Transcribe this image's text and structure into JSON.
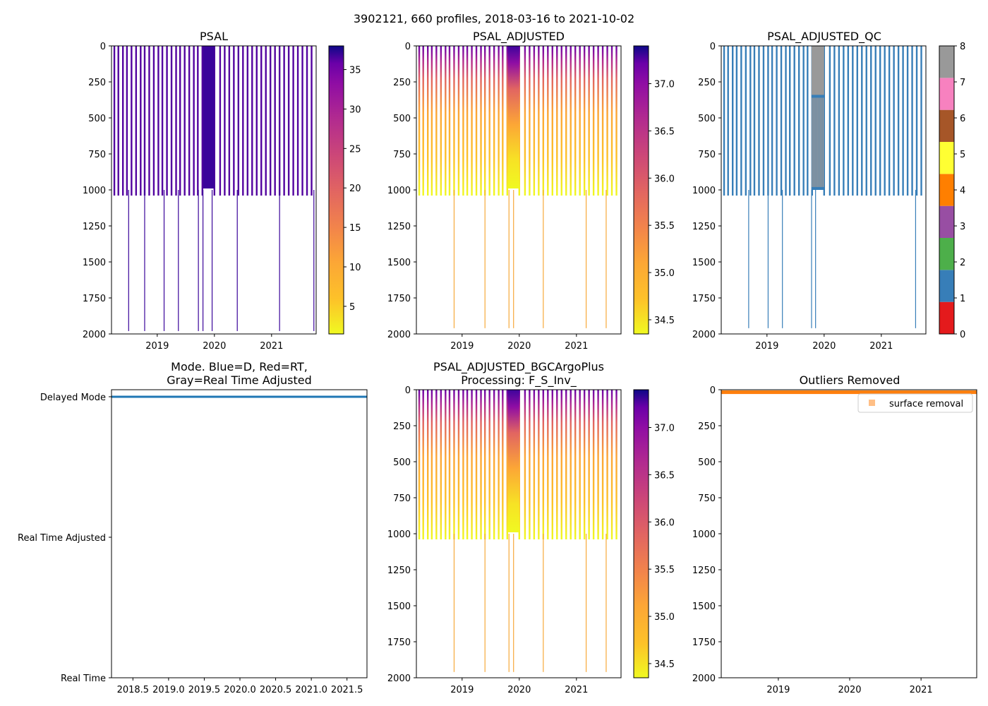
{
  "figure": {
    "suptitle": "3902121, 660 profiles, 2018-03-16 to 2021-10-02"
  },
  "chart_data": [
    {
      "id": "psal",
      "type": "heatmap",
      "title": "PSAL",
      "xlim": [
        2018.2,
        2021.78
      ],
      "ylim": [
        2000,
        0
      ],
      "xticks": [
        2019,
        2020,
        2021
      ],
      "xtick_labels": [
        "2019",
        "2020",
        "2021"
      ],
      "yticks": [
        0,
        250,
        500,
        750,
        1000,
        1250,
        1500,
        1750,
        2000
      ],
      "ytick_labels": [
        "0",
        "250",
        "500",
        "750",
        "1000",
        "1250",
        "1500",
        "1750",
        "2000"
      ],
      "profile_times": [
        2018.25,
        2018.32,
        2018.4,
        2018.47,
        2018.55,
        2018.63,
        2018.71,
        2018.78,
        2018.86,
        2018.94,
        2019.02,
        2019.09,
        2019.17,
        2019.25,
        2019.33,
        2019.4,
        2019.48,
        2019.56,
        2019.64,
        2019.71,
        2019.79,
        2020.0,
        2020.1,
        2020.18,
        2020.26,
        2020.34,
        2020.42,
        2020.5,
        2020.58,
        2020.66,
        2020.74,
        2020.82,
        2020.9,
        2020.98,
        2021.06,
        2021.14,
        2021.22,
        2021.3,
        2021.38,
        2021.46,
        2021.54,
        2021.62,
        2021.7
      ],
      "dense_period": [
        2019.8,
        2020.0
      ],
      "profile_max_depth": 1000,
      "deep_profile_times": [
        2018.5,
        2018.78,
        2019.12,
        2019.37,
        2019.72,
        2019.8,
        2019.96,
        2020.4,
        2021.14,
        2021.74
      ],
      "deep_profile_depth": 1980,
      "colorbar": {
        "cmap": "plasma_r",
        "vmin": 1.5,
        "vmax": 38,
        "ticks": [
          5,
          10,
          15,
          20,
          25,
          30,
          35
        ],
        "tick_labels": [
          "5",
          "10",
          "15",
          "20",
          "25",
          "30",
          "35"
        ]
      },
      "value_profile": {
        "surface": 35,
        "deep": 35,
        "dense": 36.5
      }
    },
    {
      "id": "psal_adjusted",
      "type": "heatmap",
      "title": "PSAL_ADJUSTED",
      "xlim": [
        2018.2,
        2021.78
      ],
      "ylim": [
        2000,
        0
      ],
      "xticks": [
        2019,
        2020,
        2021
      ],
      "xtick_labels": [
        "2019",
        "2020",
        "2021"
      ],
      "yticks": [
        0,
        250,
        500,
        750,
        1000,
        1250,
        1500,
        1750,
        2000
      ],
      "ytick_labels": [
        "0",
        "250",
        "500",
        "750",
        "1000",
        "1250",
        "1500",
        "1750",
        "2000"
      ],
      "profile_times": [
        2018.25,
        2018.32,
        2018.4,
        2018.47,
        2018.55,
        2018.63,
        2018.71,
        2018.78,
        2018.86,
        2018.94,
        2019.02,
        2019.09,
        2019.17,
        2019.25,
        2019.33,
        2019.4,
        2019.48,
        2019.56,
        2019.64,
        2019.71,
        2019.79,
        2020.0,
        2020.1,
        2020.18,
        2020.26,
        2020.34,
        2020.42,
        2020.5,
        2020.58,
        2020.66,
        2020.74,
        2020.82,
        2020.9,
        2020.98,
        2021.06,
        2021.14,
        2021.22,
        2021.3,
        2021.38,
        2021.46,
        2021.54,
        2021.62,
        2021.7
      ],
      "dense_period": [
        2019.8,
        2020.0
      ],
      "profile_max_depth": 1000,
      "deep_profile_times": [
        2018.86,
        2019.4,
        2019.82,
        2019.9,
        2020.42,
        2021.17,
        2021.52
      ],
      "deep_profile_depth": 1960,
      "colorbar": {
        "cmap": "plasma_r",
        "vmin": 34.35,
        "vmax": 37.4,
        "ticks": [
          34.5,
          35.0,
          35.5,
          36.0,
          36.5,
          37.0
        ],
        "tick_labels": [
          "34.5",
          "35.0",
          "35.5",
          "36.0",
          "36.5",
          "37.0"
        ]
      },
      "value_profile": {
        "surface": 36.9,
        "deep": 34.6,
        "dense": 36.95
      }
    },
    {
      "id": "psal_adjusted_qc",
      "type": "heatmap",
      "title": "PSAL_ADJUSTED_QC",
      "xlim": [
        2018.2,
        2021.78
      ],
      "ylim": [
        2000,
        0
      ],
      "xticks": [
        2019,
        2020,
        2021
      ],
      "xtick_labels": [
        "2019",
        "2020",
        "2021"
      ],
      "yticks": [
        0,
        250,
        500,
        750,
        1000,
        1250,
        1500,
        1750,
        2000
      ],
      "ytick_labels": [
        "0",
        "250",
        "500",
        "750",
        "1000",
        "1250",
        "1500",
        "1750",
        "2000"
      ],
      "profile_times": [
        2018.25,
        2018.32,
        2018.4,
        2018.47,
        2018.55,
        2018.63,
        2018.71,
        2018.78,
        2018.86,
        2018.94,
        2019.02,
        2019.09,
        2019.17,
        2019.25,
        2019.33,
        2019.4,
        2019.48,
        2019.56,
        2019.64,
        2019.71,
        2019.79,
        2020.0,
        2020.1,
        2020.18,
        2020.26,
        2020.34,
        2020.42,
        2020.5,
        2020.58,
        2020.66,
        2020.74,
        2020.82,
        2020.9,
        2020.98,
        2021.06,
        2021.14,
        2021.22,
        2021.3,
        2021.38,
        2021.46,
        2021.54,
        2021.62,
        2021.7
      ],
      "dense_period": [
        2019.78,
        2020.0
      ],
      "profile_max_depth": 1000,
      "deep_profile_times": [
        2018.68,
        2019.02,
        2019.27,
        2019.78,
        2019.85,
        2021.6
      ],
      "deep_profile_depth": 1960,
      "colorbar": {
        "cmap": "qc_categorical",
        "vmin": 0,
        "vmax": 8,
        "ticks": [
          0,
          1,
          2,
          3,
          4,
          5,
          6,
          7,
          8
        ],
        "tick_labels": [
          "0",
          "1",
          "2",
          "3",
          "4",
          "5",
          "6",
          "7",
          "8"
        ],
        "colors": [
          "#e41a1c",
          "#377eb8",
          "#4daf4a",
          "#984ea3",
          "#ff7f00",
          "#ffff33",
          "#a65628",
          "#f781bf",
          "#999999"
        ]
      },
      "flag_colors": {
        "good": "#377eb8",
        "missing": "#999999"
      }
    },
    {
      "id": "mode",
      "type": "line",
      "title_lines": [
        "Mode. Blue=D, Red=RT,",
        "Gray=Real Time Adjusted"
      ],
      "xlim": [
        2018.2,
        2021.78
      ],
      "xticks": [
        2018.5,
        2019.0,
        2019.5,
        2020.0,
        2020.5,
        2021.0,
        2021.5
      ],
      "xtick_labels": [
        "2018.5",
        "2019.0",
        "2019.5",
        "2020.0",
        "2020.5",
        "2021.0",
        "2021.5"
      ],
      "ylim": [
        0,
        2.05
      ],
      "yticks": [
        0,
        1,
        2
      ],
      "ytick_labels": [
        "Real Time",
        "Real Time Adjusted",
        "Delayed Mode"
      ],
      "series": [
        {
          "name": "Delayed Mode",
          "color": "#1f77b4",
          "x": [
            2018.2,
            2021.78
          ],
          "y": [
            2,
            2
          ]
        }
      ]
    },
    {
      "id": "psal_adjusted_bgcargoplus",
      "type": "heatmap",
      "title_lines": [
        "PSAL_ADJUSTED_BGCArgoPlus",
        "Processing: F_S_Inv_"
      ],
      "xlim": [
        2018.2,
        2021.78
      ],
      "ylim": [
        2000,
        0
      ],
      "xticks": [
        2019,
        2020,
        2021
      ],
      "xtick_labels": [
        "2019",
        "2020",
        "2021"
      ],
      "yticks": [
        0,
        250,
        500,
        750,
        1000,
        1250,
        1500,
        1750,
        2000
      ],
      "ytick_labels": [
        "0",
        "250",
        "500",
        "750",
        "1000",
        "1250",
        "1500",
        "1750",
        "2000"
      ],
      "profile_times": [
        2018.25,
        2018.32,
        2018.4,
        2018.47,
        2018.55,
        2018.63,
        2018.71,
        2018.78,
        2018.86,
        2018.94,
        2019.02,
        2019.09,
        2019.17,
        2019.25,
        2019.33,
        2019.4,
        2019.48,
        2019.56,
        2019.64,
        2019.71,
        2019.79,
        2020.0,
        2020.1,
        2020.18,
        2020.26,
        2020.34,
        2020.42,
        2020.5,
        2020.58,
        2020.66,
        2020.74,
        2020.82,
        2020.9,
        2020.98,
        2021.06,
        2021.14,
        2021.22,
        2021.3,
        2021.38,
        2021.46,
        2021.54,
        2021.62,
        2021.7
      ],
      "dense_period": [
        2019.8,
        2020.0
      ],
      "profile_max_depth": 1000,
      "deep_profile_times": [
        2018.86,
        2019.4,
        2019.82,
        2019.9,
        2020.42,
        2021.17,
        2021.52
      ],
      "deep_profile_depth": 1960,
      "colorbar": {
        "cmap": "plasma_r",
        "vmin": 34.35,
        "vmax": 37.4,
        "ticks": [
          34.5,
          35.0,
          35.5,
          36.0,
          36.5,
          37.0
        ],
        "tick_labels": [
          "34.5",
          "35.0",
          "35.5",
          "36.0",
          "36.5",
          "37.0"
        ]
      },
      "value_profile": {
        "surface": 36.9,
        "deep": 34.6,
        "dense": 36.95
      }
    },
    {
      "id": "outliers",
      "type": "scatter",
      "title": "Outliers Removed",
      "xlim": [
        2018.2,
        2021.78
      ],
      "ylim": [
        2000,
        0
      ],
      "xticks": [
        2019,
        2020,
        2021
      ],
      "xtick_labels": [
        "2019",
        "2020",
        "2021"
      ],
      "yticks": [
        0,
        250,
        500,
        750,
        1000,
        1250,
        1500,
        1750,
        2000
      ],
      "ytick_labels": [
        "0",
        "250",
        "500",
        "750",
        "1000",
        "1250",
        "1500",
        "1750",
        "2000"
      ],
      "series": [
        {
          "name": "surface removal",
          "color": "#ff7f0e",
          "x_range": [
            2018.2,
            2021.78
          ],
          "depth_range": [
            0,
            20
          ]
        }
      ],
      "legend": {
        "placement": "upper-right",
        "entries": [
          "surface removal"
        ]
      }
    }
  ]
}
